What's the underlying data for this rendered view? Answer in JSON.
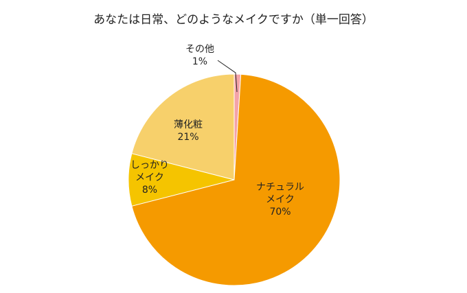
{
  "chart_data": {
    "type": "pie",
    "title": "あなたは日常、どのようなメイクですか（単一回答）",
    "slices": [
      {
        "name": "その他",
        "value": 1,
        "label_lines": [
          "その他",
          "1%"
        ],
        "color": "#f4a3a8"
      },
      {
        "name": "ナチュラルメイク",
        "value": 70,
        "label_lines": [
          "ナチュラル",
          "メイク",
          "70%"
        ],
        "color": "#f59a00"
      },
      {
        "name": "しっかりメイク",
        "value": 8,
        "label_lines": [
          "しっかり",
          "メイク",
          "8%"
        ],
        "color": "#f5c400"
      },
      {
        "name": "薄化粧",
        "value": 21,
        "label_lines": [
          "薄化粧",
          "21%"
        ],
        "color": "#f7d06b"
      }
    ],
    "start": "12 o'clock",
    "direction": "clockwise",
    "legend": "none"
  }
}
